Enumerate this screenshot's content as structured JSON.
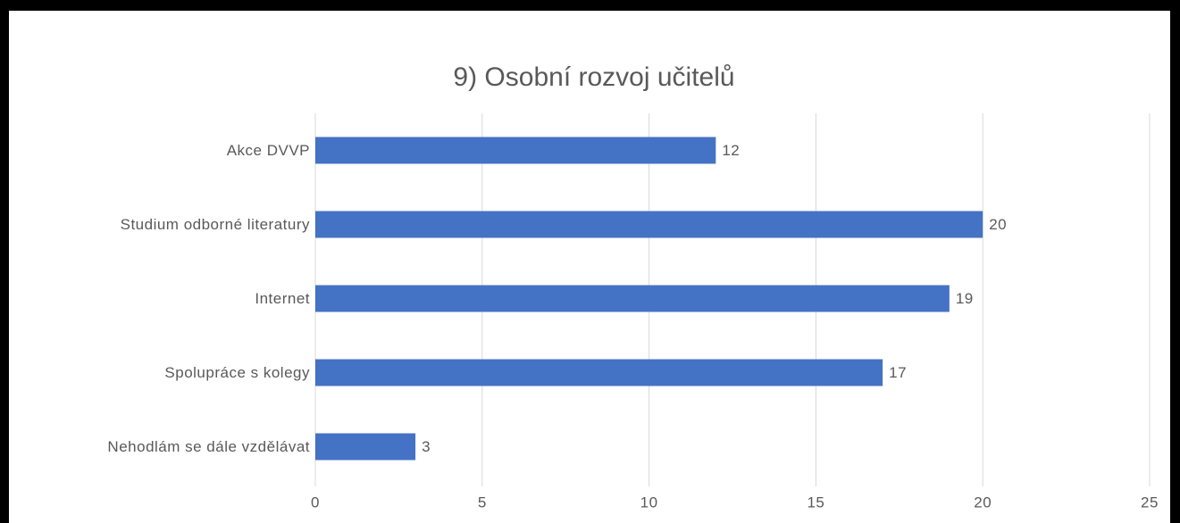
{
  "chart_data": {
    "type": "barh",
    "title": "9) Osobní rozvoj učitelů",
    "categories": [
      "Akce DVVP",
      "Studium odborné literatury",
      "Internet",
      "Spolupráce s kolegy",
      "Nehodlám se dále vzdělávat"
    ],
    "values": [
      12,
      20,
      19,
      17,
      3
    ],
    "color": "#4472c4",
    "xlim": [
      0,
      25
    ],
    "xticks": [
      0,
      5,
      10,
      15,
      20,
      25
    ],
    "grid": true
  }
}
